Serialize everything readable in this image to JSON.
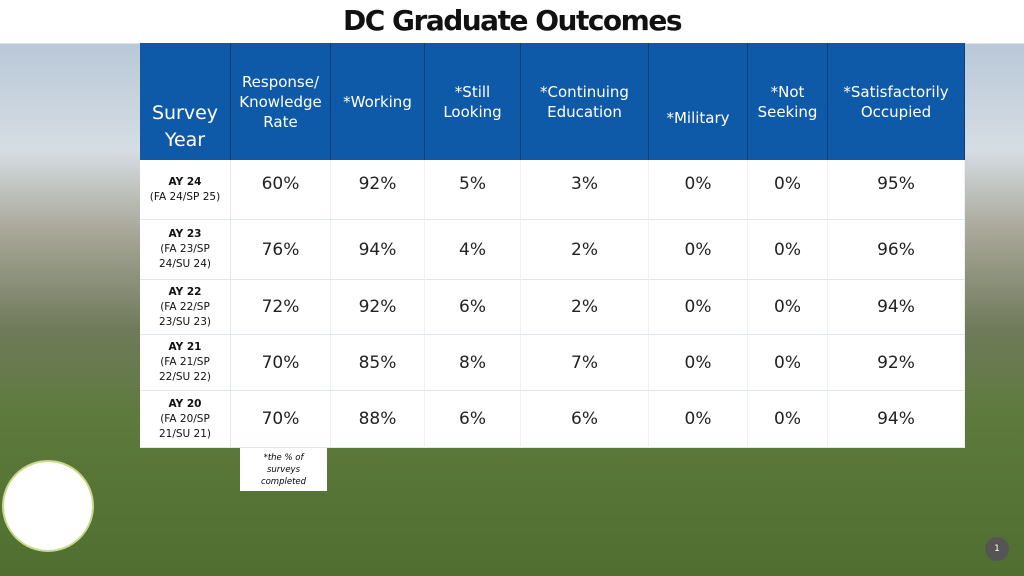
{
  "header": {
    "title": "DC Graduate Outcomes"
  },
  "table": {
    "columns": [
      "Survey Year",
      "Response/ Knowledge Rate",
      "*Working",
      "*Still Looking",
      "*Continuing Education",
      "*Military",
      "*Not Seeking",
      "*Satisfactorily Occupied"
    ],
    "rows": [
      {
        "year": "AY 24",
        "terms": "(FA 24/SP 25)",
        "cells": [
          "60%",
          "92%",
          "5%",
          "3%",
          "0%",
          "0%",
          "95%"
        ]
      },
      {
        "year": "AY 23",
        "terms": "(FA 23/SP 24/SU 24)",
        "cells": [
          "76%",
          "94%",
          "4%",
          "2%",
          "0%",
          "0%",
          "96%"
        ]
      },
      {
        "year": "AY 22",
        "terms": "(FA 22/SP 23/SU 23)",
        "cells": [
          "72%",
          "92%",
          "6%",
          "2%",
          "0%",
          "0%",
          "94%"
        ]
      },
      {
        "year": "AY 21",
        "terms": "(FA 21/SP 22/SU 22)",
        "cells": [
          "70%",
          "85%",
          "8%",
          "7%",
          "0%",
          "0%",
          "92%"
        ]
      },
      {
        "year": "AY 20",
        "terms": "(FA 20/SP 21/SU 21)",
        "cells": [
          "70%",
          "88%",
          "6%",
          "6%",
          "0%",
          "0%",
          "94%"
        ]
      }
    ]
  },
  "note": "*the % of surveys completed",
  "page_number": "1"
}
